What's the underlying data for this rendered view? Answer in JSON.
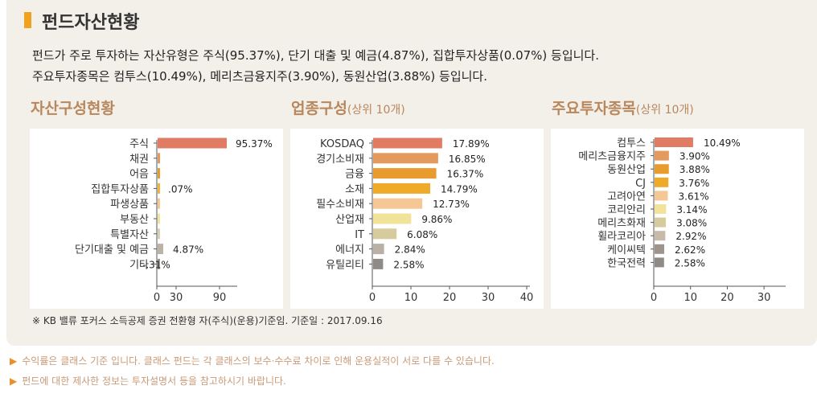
{
  "title": "펀드자산현황",
  "description": [
    "펀드가 주로 투자하는 자산유형은 주식(95.37%), 단기 대출 및 예금(4.87%), 집합투자상품(0.07%) 등입니다.",
    "주요투자종목은 컴투스(10.49%), 메리츠금융지주(3.90%), 동원산업(3.88%) 등입니다."
  ],
  "sections": {
    "asset": {
      "title": "자산구성현황",
      "sub": ""
    },
    "sector": {
      "title": "업종구성",
      "sub": "(상위 10개)"
    },
    "holdings": {
      "title": "주요투자종목",
      "sub": "(상위 10개)"
    }
  },
  "note": "※ KB 밸류 포커스 소득공제 증권 전환형 자(주식)(운용)기준임. 기준일 : 2017.09.16",
  "footnotes": [
    "수익률은 클래스 기준 입니다. 클래스 펀드는 각 클래스의 보수·수수료 차이로 인해 운용실적이 서로 다를 수 있습니다.",
    "펀드에 대한 제사한 정보는 투자설명서 등을 참고하시기 바랍니다."
  ],
  "colors": {
    "accent": "#f0a11d",
    "section_title": "#b9875c",
    "panel_bg": "#f3efe9",
    "footnote": "#c89a77"
  },
  "chart_data": [
    {
      "type": "bar",
      "orientation": "horizontal",
      "categories": [
        "주식",
        "채권",
        "어음",
        "집합투자상품",
        "파생상품",
        "부동산",
        "특별자산",
        "단기대출 및 예금",
        "기타"
      ],
      "values": [
        95.37,
        0,
        0,
        0.07,
        0,
        0,
        0,
        4.87,
        -0.31
      ],
      "labels": [
        "95.37%",
        "",
        "",
        ".07%",
        "",
        "",
        "",
        "4.87%",
        "-.31%"
      ],
      "colors": [
        "#e07c63",
        "#e39a5c",
        "#e89c2d",
        "#f0b33b",
        "#f4c795",
        "#f0e2a0",
        "#d8cfb4",
        "#bcb3a8",
        "#9d948d"
      ],
      "xticks": [
        0,
        30,
        90
      ],
      "xlim": [
        0,
        100
      ]
    },
    {
      "type": "bar",
      "orientation": "horizontal",
      "categories": [
        "KOSDAQ",
        "경기소비재",
        "금융",
        "소재",
        "필수소비재",
        "산업재",
        "IT",
        "에너지",
        "유틸리티"
      ],
      "values": [
        17.89,
        16.85,
        16.37,
        14.79,
        12.73,
        9.86,
        6.08,
        2.84,
        2.58
      ],
      "labels": [
        "17.89%",
        "16.85%",
        "16.37%",
        "14.79%",
        "12.73%",
        "9.86%",
        "6.08%",
        "2.84%",
        "2.58%"
      ],
      "colors": [
        "#e07c63",
        "#e39a5c",
        "#e89c2d",
        "#f0aa2a",
        "#f4c795",
        "#f2e39a",
        "#d5cb9c",
        "#b9b0a6",
        "#8f8a85"
      ],
      "xticks": [
        0,
        10,
        20,
        30,
        40
      ],
      "xlim": [
        0,
        40
      ]
    },
    {
      "type": "bar",
      "orientation": "horizontal",
      "categories": [
        "컴투스",
        "메리츠금융지주",
        "동원산업",
        "CJ",
        "고려아연",
        "코리안리",
        "메리츠화재",
        "휠라코리아",
        "케이씨텍",
        "한국전력"
      ],
      "values": [
        10.49,
        3.9,
        3.88,
        3.76,
        3.61,
        3.14,
        3.08,
        2.92,
        2.62,
        2.58
      ],
      "labels": [
        "10.49%",
        "3.90%",
        "3.88%",
        "3.76%",
        "3.61%",
        "3.14%",
        "3.08%",
        "2.92%",
        "2.62%",
        "2.58%"
      ],
      "colors": [
        "#e07c63",
        "#e39a5c",
        "#e89c2d",
        "#f0aa2a",
        "#f4c795",
        "#f2e39a",
        "#d5cb9c",
        "#c9b9a8",
        "#9d948d",
        "#8f8a85"
      ],
      "xticks": [
        0,
        10,
        20,
        30
      ],
      "xlim": [
        0,
        35
      ]
    }
  ]
}
